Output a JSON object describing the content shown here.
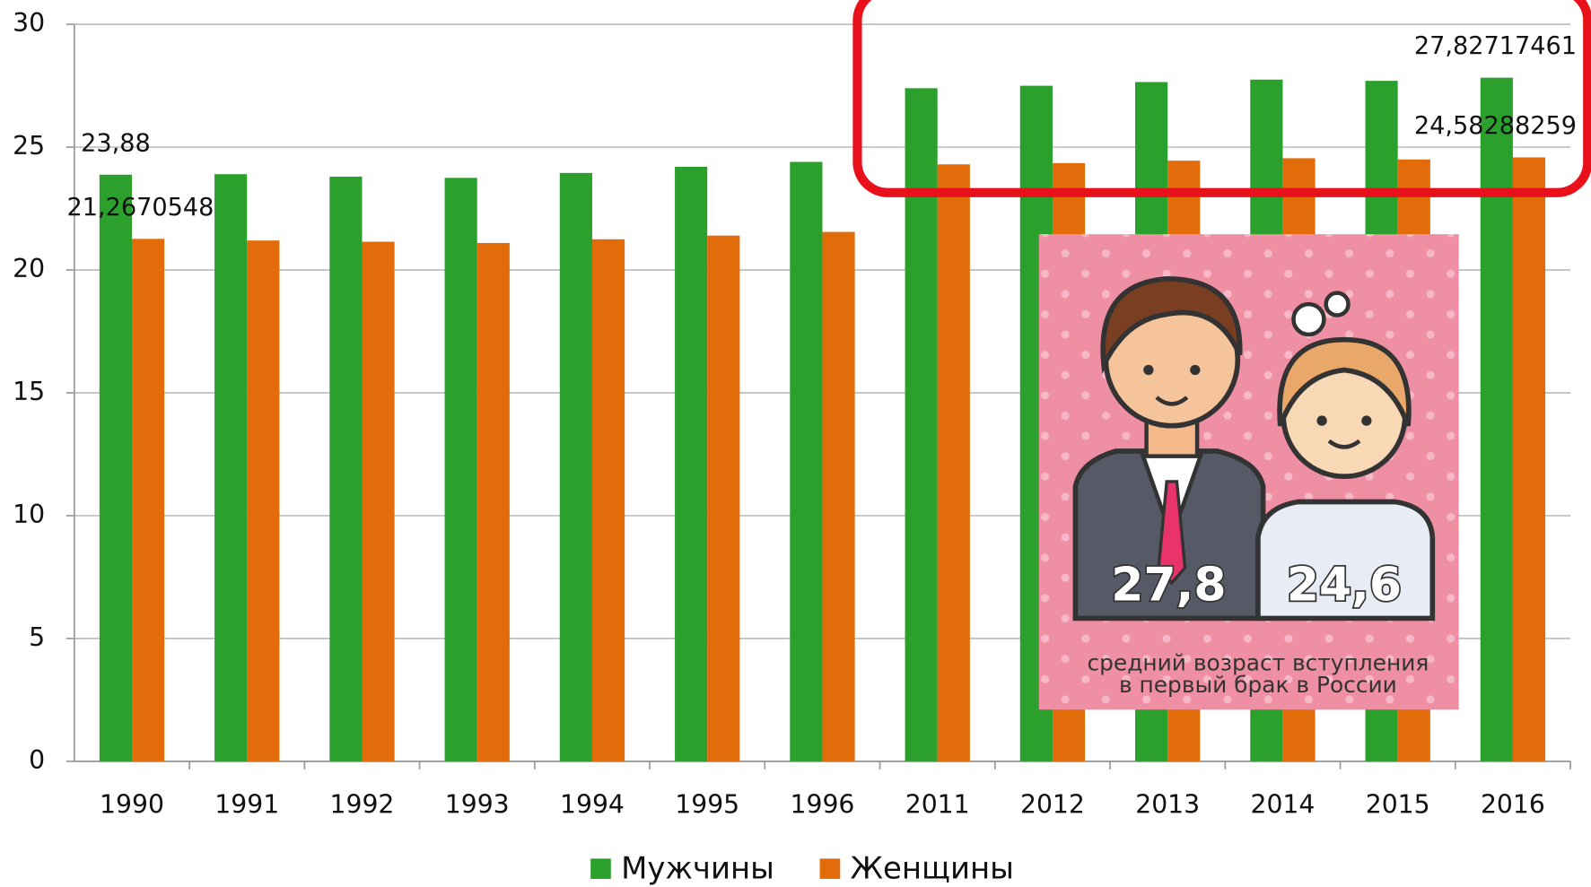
{
  "chart_data": {
    "type": "bar",
    "categories": [
      "1990",
      "1991",
      "1992",
      "1993",
      "1994",
      "1995",
      "1996",
      "2011",
      "2012",
      "2013",
      "2014",
      "2015",
      "2016"
    ],
    "series": [
      {
        "name": "Мужчины",
        "color": "#2ca02c",
        "values": [
          23.88,
          23.9,
          23.8,
          23.75,
          23.95,
          24.2,
          24.4,
          27.4,
          27.5,
          27.65,
          27.75,
          27.7,
          27.82717461
        ],
        "value_labels": [
          "23,88",
          null,
          null,
          null,
          null,
          null,
          null,
          null,
          null,
          null,
          null,
          null,
          "27,82717461"
        ]
      },
      {
        "name": "Женщины",
        "color": "#e36c0a",
        "values": [
          21.26705483,
          21.2,
          21.15,
          21.1,
          21.25,
          21.4,
          21.55,
          24.3,
          24.35,
          24.45,
          24.55,
          24.5,
          24.58288259
        ],
        "value_labels": [
          "21,26705483",
          null,
          null,
          null,
          null,
          null,
          null,
          null,
          null,
          null,
          null,
          null,
          "24,58288259"
        ]
      }
    ],
    "ylim": [
      0,
      30
    ],
    "yticks": [
      0,
      5,
      10,
      15,
      20,
      25,
      30
    ],
    "grid": true,
    "legend": "bottom",
    "overlay": {
      "men": "27,8",
      "women": "24,6",
      "caption": [
        "средний возраст вступления",
        "в первый брак в России"
      ]
    }
  }
}
